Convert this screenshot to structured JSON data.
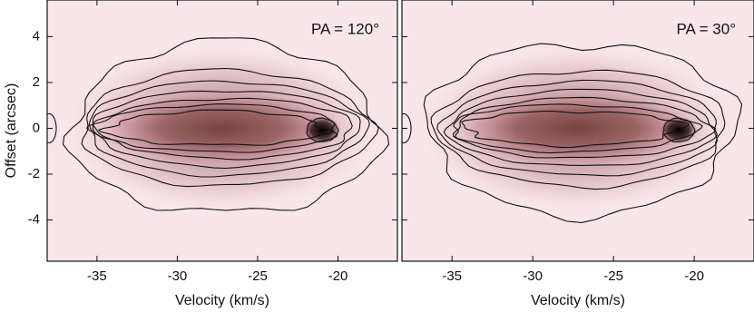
{
  "chart_data": [
    {
      "type": "contour",
      "annotation": "PA = 120°",
      "xlabel": "Velocity (km/s)",
      "ylabel": "Offset (arcsec)",
      "xlim": [
        -38.1,
        -16.3
      ],
      "ylim": [
        -5.8,
        5.6
      ],
      "xticks": [
        -35,
        -30,
        -25,
        -20
      ],
      "yticks": [
        -4,
        -2,
        0,
        2,
        4
      ]
    },
    {
      "type": "contour",
      "annotation": "PA = 30°",
      "xlabel": "Velocity (km/s)",
      "xlim": [
        -38.1,
        -16.3
      ],
      "ylim": [
        -5.8,
        5.6
      ],
      "xticks": [
        -35,
        -30,
        -25,
        -20
      ],
      "yticks": [
        -4,
        -2,
        0,
        2,
        4
      ]
    }
  ]
}
